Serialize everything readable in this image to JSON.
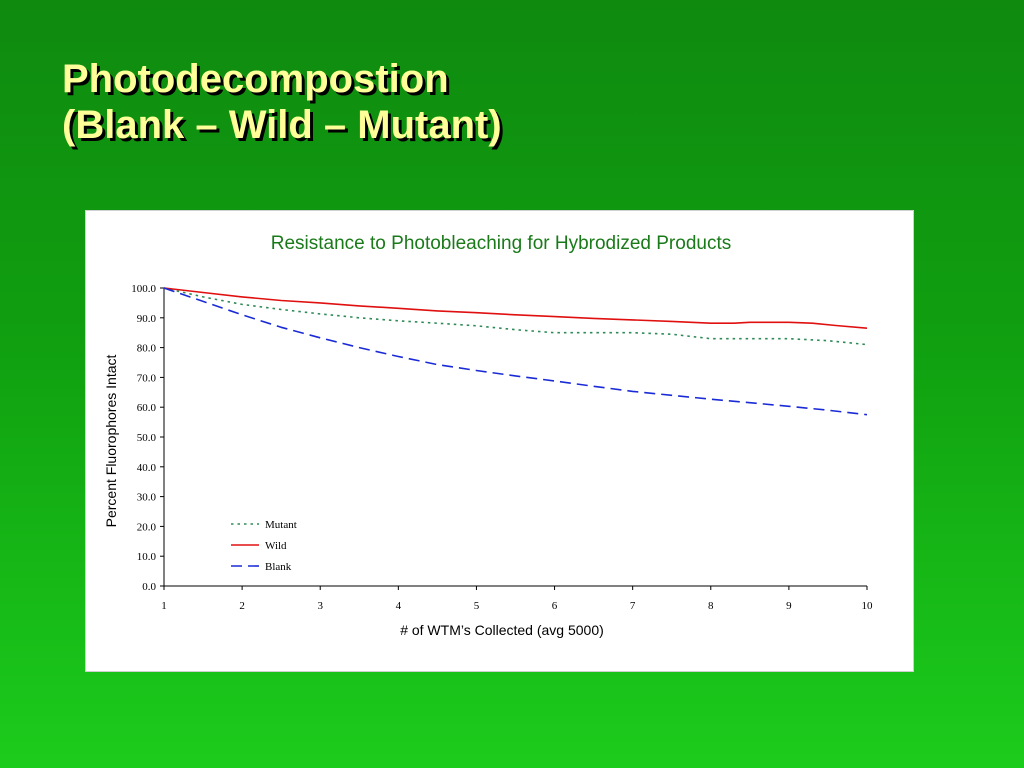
{
  "slide": {
    "title_line1": "Photodecompostion",
    "title_line2": "(Blank – Wild – Mutant)"
  },
  "chart_data": {
    "type": "line",
    "title": "Resistance to Photobleaching for Hybrodized Products",
    "xlabel": "# of WTM’s Collected (avg 5000)",
    "ylabel": "Percent Fluorophores Intact",
    "xlim": [
      1,
      10
    ],
    "ylim": [
      0,
      100
    ],
    "x_ticks": [
      1,
      2,
      3,
      4,
      5,
      6,
      7,
      8,
      9,
      10
    ],
    "y_ticks": [
      "0.0",
      "10.0",
      "20.0",
      "30.0",
      "40.0",
      "50.0",
      "60.0",
      "70.0",
      "80.0",
      "90.0",
      "100.0"
    ],
    "grid": false,
    "legend_position": "lower-left inside plot",
    "series": [
      {
        "name": "Mutant",
        "color": "#2e8b57",
        "style": "dotted",
        "x": [
          1,
          1.5,
          2,
          2.5,
          3,
          3.5,
          4,
          4.5,
          5,
          5.5,
          6,
          6.5,
          7,
          7.5,
          8,
          8.5,
          9,
          9.5,
          10
        ],
        "y": [
          100.0,
          97.0,
          94.5,
          92.8,
          91.3,
          90.0,
          89.0,
          88.2,
          87.3,
          86.0,
          85.0,
          85.0,
          85.0,
          84.5,
          83.0,
          83.0,
          83.0,
          82.3,
          81.0
        ]
      },
      {
        "name": "Wild",
        "color": "#e01010",
        "style": "solid",
        "x": [
          1,
          1.5,
          2,
          2.5,
          3,
          3.5,
          4,
          4.5,
          5,
          5.5,
          6,
          6.5,
          7,
          7.5,
          8,
          8.3,
          8.5,
          9,
          9.3,
          9.6,
          10
        ],
        "y": [
          100.0,
          98.5,
          97.0,
          95.8,
          95.0,
          94.0,
          93.2,
          92.3,
          91.7,
          91.0,
          90.4,
          89.8,
          89.3,
          88.8,
          88.2,
          88.2,
          88.5,
          88.5,
          88.2,
          87.4,
          86.5
        ]
      },
      {
        "name": "Blank",
        "color": "#1a2bd6",
        "style": "dashed",
        "x": [
          1,
          1.5,
          2,
          2.5,
          3,
          3.5,
          4,
          4.5,
          5,
          5.5,
          6,
          6.5,
          7,
          7.5,
          8,
          8.5,
          9,
          9.5,
          10
        ],
        "y": [
          100.0,
          95.5,
          91.0,
          86.8,
          83.3,
          80.0,
          77.0,
          74.3,
          72.3,
          70.5,
          68.8,
          67.0,
          65.3,
          64.0,
          62.7,
          61.5,
          60.3,
          59.0,
          57.5
        ]
      }
    ]
  }
}
